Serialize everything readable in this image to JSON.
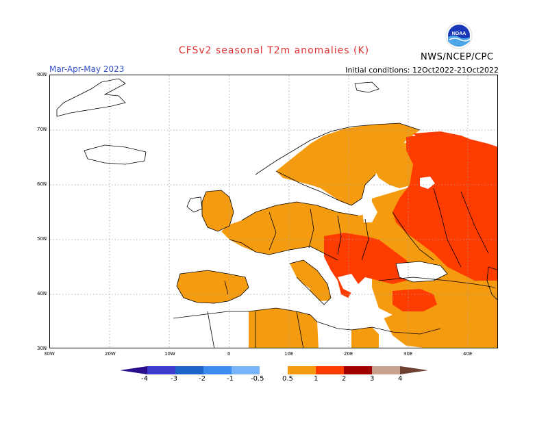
{
  "title": "CFSv2 seasonal T2m anomalies (K)",
  "season": "Mar-Apr-May 2023",
  "initial_conditions": "Initial conditions: 12Oct2022-21Oct2022",
  "agency": "NWS/NCEP/CPC",
  "logo": {
    "icon": "noaa-logo",
    "text": "NOAA"
  },
  "map": {
    "region": "Europe",
    "lat_labels": [
      "80N",
      "70N",
      "60N",
      "50N",
      "40N",
      "30N"
    ],
    "lon_labels": [
      "30W",
      "20W",
      "10W",
      "0",
      "10E",
      "20E",
      "30E",
      "40E"
    ],
    "grid": true
  },
  "colorbar": {
    "ticks": [
      "-4",
      "-3",
      "-2",
      "-1",
      "-0.5",
      "0.5",
      "1",
      "2",
      "3",
      "4"
    ],
    "colors": {
      "lt_-4": "#2a0e8c",
      "-4_-3": "#3c3ccc",
      "-3_-2": "#1e64c8",
      "-2_-1": "#3c8cf0",
      "-1_-0.5": "#78b4f8",
      "-0.5_0.5": "#ffffff",
      "0.5_1": "#f59b0f",
      "1_2": "#ff3c00",
      "2_3": "#a00000",
      "3_4": "#c8a090",
      "gt_4": "#6e4030"
    }
  }
}
